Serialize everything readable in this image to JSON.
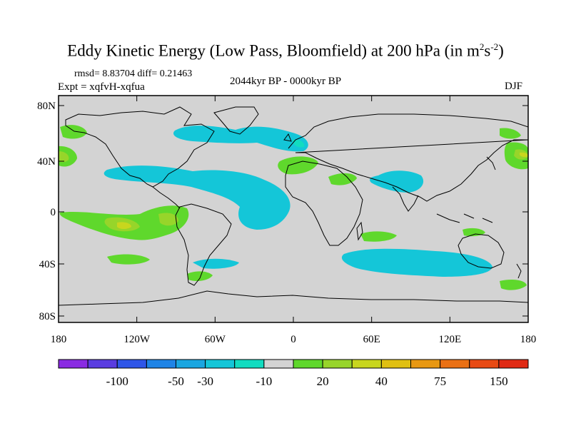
{
  "title": {
    "main": "Eddy Kinetic Energy (Low Pass, Bloomfield) at 200 hPa (in m",
    "sup1": "2",
    "mid": "s",
    "sup2": "-2",
    "end": ")"
  },
  "stats": {
    "rmsd": "rmsd= 8.83704 diff= 0.21463",
    "expt": "Expt = xqfvH-xqfua",
    "period": "2044kyr BP - 0000kyr BP",
    "season": "DJF"
  },
  "map": {
    "lat_labels": [
      "80N",
      "40N",
      "0",
      "40S",
      "80S"
    ],
    "lon_labels": [
      "180",
      "120W",
      "60W",
      "0",
      "60E",
      "120E",
      "180"
    ],
    "background": "#d3d3d3"
  },
  "colorbar": {
    "colors": [
      "#8a2be2",
      "#5a3ce0",
      "#2f56e8",
      "#1f84e6",
      "#1aa6e0",
      "#14c6d8",
      "#12dcc0",
      "#d3d3d3",
      "#5fd82c",
      "#97d52a",
      "#c8d61e",
      "#e0c012",
      "#e89812",
      "#ea7014",
      "#e84a14",
      "#e02a14"
    ],
    "labels": [
      "-100",
      "-50",
      "-30",
      "-10",
      "20",
      "40",
      "75",
      "150"
    ]
  }
}
